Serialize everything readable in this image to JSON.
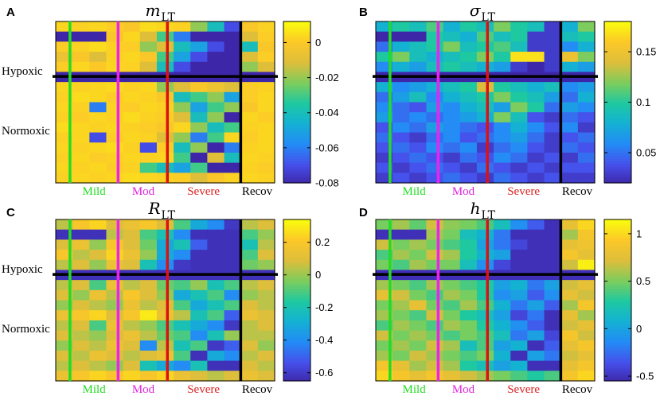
{
  "figure": {
    "row_labels": [
      "Hypoxic",
      "Normoxic"
    ],
    "condition_labels": [
      {
        "text": "Mild",
        "color": "#22dd22"
      },
      {
        "text": "Mod",
        "color": "#dd22dd"
      },
      {
        "text": "Severe",
        "color": "#dd2222"
      },
      {
        "text": "Recov",
        "color": "#000000"
      }
    ],
    "divider_colors": [
      "#22dd22",
      "#ee22ee",
      "#dd1111",
      "#000000"
    ]
  },
  "chart_data": [
    {
      "type": "heatmap",
      "panel": "A",
      "title_symbol": "m",
      "title_subscript": "LT",
      "rows": 16,
      "cols": 13,
      "hypoxic_rows": 5,
      "clim": [
        -0.08,
        0.012
      ],
      "colorbar_ticks": [
        {
          "value": 0,
          "label": "0"
        },
        {
          "value": -0.02,
          "label": "-0.02"
        },
        {
          "value": -0.04,
          "label": "-0.04"
        },
        {
          "value": -0.06,
          "label": "-0.06"
        },
        {
          "value": -0.08,
          "label": "-0.08"
        }
      ],
      "values": [
        [
          0.004,
          0.003,
          0.004,
          0.002,
          0.0,
          0.005,
          0.004,
          0.003,
          -0.02,
          -0.04,
          -0.07,
          0.0,
          0.003
        ],
        [
          -0.08,
          -0.08,
          -0.08,
          0.0,
          0.004,
          -0.01,
          -0.03,
          -0.06,
          -0.08,
          -0.08,
          -0.08,
          -0.01,
          0.002
        ],
        [
          0.002,
          0.003,
          0.005,
          0.003,
          0.002,
          -0.02,
          -0.01,
          -0.04,
          -0.05,
          -0.07,
          -0.08,
          -0.04,
          0.0
        ],
        [
          -0.005,
          0.0,
          -0.01,
          0.003,
          0.004,
          0.0,
          -0.03,
          -0.05,
          -0.07,
          -0.08,
          -0.08,
          -0.01,
          0.002
        ],
        [
          0.002,
          0.004,
          0.001,
          0.004,
          0.003,
          -0.01,
          -0.04,
          -0.07,
          -0.08,
          -0.08,
          -0.08,
          -0.02,
          -0.01
        ],
        [
          -0.08,
          -0.08,
          -0.08,
          -0.08,
          -0.08,
          -0.08,
          -0.08,
          -0.08,
          -0.08,
          -0.08,
          -0.08,
          -0.08,
          -0.08
        ],
        [
          0.004,
          0.003,
          0.004,
          0.005,
          0.003,
          0.004,
          -0.02,
          -0.01,
          0.0,
          -0.005,
          -0.01,
          0.002,
          0.003
        ],
        [
          0.003,
          0.005,
          0.004,
          0.002,
          0.004,
          0.003,
          0.0,
          -0.04,
          -0.03,
          -0.02,
          -0.05,
          0.002,
          0.004
        ],
        [
          0.004,
          0.003,
          -0.06,
          0.003,
          0.002,
          0.004,
          0.003,
          -0.02,
          -0.05,
          -0.03,
          -0.02,
          0.0,
          0.004
        ],
        [
          0.003,
          0.002,
          0.004,
          0.003,
          0.005,
          0.003,
          0.002,
          -0.01,
          -0.04,
          -0.02,
          -0.08,
          0.004,
          0.002
        ],
        [
          0.005,
          0.004,
          0.003,
          0.004,
          0.003,
          0.002,
          0.0,
          0.004,
          -0.02,
          -0.04,
          -0.03,
          0.003,
          0.004
        ],
        [
          0.003,
          0.004,
          -0.07,
          0.002,
          0.004,
          0.003,
          -0.01,
          -0.02,
          -0.06,
          -0.03,
          0.004,
          0.002,
          0.004
        ],
        [
          0.004,
          0.003,
          0.004,
          0.005,
          0.003,
          -0.07,
          0.002,
          -0.04,
          -0.02,
          -0.08,
          -0.06,
          0.003,
          0.004
        ],
        [
          0.003,
          0.004,
          0.002,
          0.003,
          0.004,
          0.003,
          0.004,
          -0.03,
          -0.08,
          -0.01,
          -0.04,
          0.004,
          0.003
        ],
        [
          0.004,
          0.003,
          0.004,
          0.002,
          0.003,
          -0.03,
          -0.04,
          -0.05,
          -0.03,
          -0.08,
          -0.08,
          0.003,
          0.002
        ],
        [
          0.003,
          0.004,
          0.003,
          0.004,
          0.005,
          0.004,
          0.003,
          0.002,
          -0.01,
          0.0,
          0.003,
          0.004,
          0.003
        ]
      ]
    },
    {
      "type": "heatmap",
      "panel": "B",
      "title_symbol": "σ",
      "title_subscript": "LT",
      "rows": 16,
      "cols": 13,
      "hypoxic_rows": 5,
      "clim": [
        0.02,
        0.18
      ],
      "colorbar_ticks": [
        {
          "value": 0.15,
          "label": "0.15"
        },
        {
          "value": 0.1,
          "label": "0.1"
        },
        {
          "value": 0.05,
          "label": "0.05"
        }
      ],
      "values": [
        [
          0.08,
          0.1,
          0.09,
          0.11,
          0.08,
          0.1,
          0.09,
          0.12,
          0.1,
          0.09,
          0.03,
          0.08,
          0.12
        ],
        [
          0.02,
          0.02,
          0.02,
          0.1,
          0.09,
          0.08,
          0.11,
          0.09,
          0.1,
          0.03,
          0.03,
          0.09,
          0.1
        ],
        [
          0.05,
          0.08,
          0.09,
          0.1,
          0.12,
          0.09,
          0.1,
          0.11,
          0.09,
          0.03,
          0.03,
          0.06,
          0.08
        ],
        [
          0.1,
          0.12,
          0.09,
          0.08,
          0.09,
          0.1,
          0.12,
          0.1,
          0.17,
          0.17,
          0.03,
          0.15,
          0.12
        ],
        [
          0.06,
          0.08,
          0.07,
          0.09,
          0.1,
          0.09,
          0.08,
          0.07,
          0.03,
          0.02,
          0.03,
          0.08,
          0.07
        ],
        [
          0.02,
          0.02,
          0.02,
          0.02,
          0.02,
          0.02,
          0.02,
          0.02,
          0.02,
          0.02,
          0.02,
          0.02,
          0.02
        ],
        [
          0.08,
          0.06,
          0.07,
          0.08,
          0.09,
          0.1,
          0.14,
          0.1,
          0.09,
          0.08,
          0.09,
          0.06,
          0.07
        ],
        [
          0.05,
          0.07,
          0.09,
          0.06,
          0.08,
          0.09,
          0.1,
          0.12,
          0.1,
          0.09,
          0.07,
          0.05,
          0.08
        ],
        [
          0.06,
          0.05,
          0.04,
          0.07,
          0.06,
          0.08,
          0.09,
          0.07,
          0.12,
          0.1,
          0.05,
          0.07,
          0.06
        ],
        [
          0.07,
          0.05,
          0.06,
          0.05,
          0.06,
          0.07,
          0.08,
          0.12,
          0.09,
          0.04,
          0.03,
          0.05,
          0.04
        ],
        [
          0.04,
          0.06,
          0.05,
          0.07,
          0.06,
          0.05,
          0.04,
          0.06,
          0.08,
          0.06,
          0.04,
          0.06,
          0.03
        ],
        [
          0.05,
          0.04,
          0.03,
          0.05,
          0.06,
          0.04,
          0.05,
          0.06,
          0.07,
          0.05,
          0.03,
          0.04,
          0.05
        ],
        [
          0.04,
          0.05,
          0.04,
          0.06,
          0.05,
          0.06,
          0.03,
          0.05,
          0.06,
          0.04,
          0.03,
          0.05,
          0.04
        ],
        [
          0.03,
          0.04,
          0.05,
          0.04,
          0.03,
          0.05,
          0.04,
          0.06,
          0.05,
          0.03,
          0.04,
          0.03,
          0.05
        ],
        [
          0.04,
          0.03,
          0.04,
          0.05,
          0.04,
          0.03,
          0.05,
          0.04,
          0.03,
          0.04,
          0.03,
          0.04,
          0.04
        ],
        [
          0.03,
          0.04,
          0.03,
          0.04,
          0.05,
          0.04,
          0.03,
          0.05,
          0.04,
          0.03,
          0.04,
          0.03,
          0.03
        ]
      ]
    },
    {
      "type": "heatmap",
      "panel": "C",
      "title_symbol": "R",
      "title_subscript": "LT",
      "rows": 16,
      "cols": 13,
      "hypoxic_rows": 5,
      "clim": [
        -0.65,
        0.34
      ],
      "colorbar_ticks": [
        {
          "value": 0.2,
          "label": "0.2"
        },
        {
          "value": 0,
          "label": "0"
        },
        {
          "value": -0.2,
          "label": "-0.2"
        },
        {
          "value": -0.4,
          "label": "-0.4"
        },
        {
          "value": -0.6,
          "label": "-0.6"
        }
      ],
      "values": [
        [
          0.05,
          0.2,
          0.25,
          0.1,
          0.15,
          0.2,
          0.1,
          -0.1,
          -0.3,
          -0.4,
          -0.6,
          0.05,
          0.1
        ],
        [
          -0.62,
          -0.62,
          -0.62,
          0.05,
          0.1,
          -0.1,
          -0.2,
          -0.4,
          -0.62,
          -0.62,
          -0.62,
          -0.1,
          0.0
        ],
        [
          0.1,
          0.15,
          0.0,
          0.2,
          0.1,
          -0.05,
          -0.3,
          -0.2,
          -0.5,
          -0.62,
          -0.62,
          -0.2,
          0.05
        ],
        [
          0.2,
          0.05,
          0.1,
          0.25,
          0.15,
          0.0,
          -0.3,
          -0.4,
          -0.62,
          -0.62,
          -0.62,
          -0.1,
          0.1
        ],
        [
          0.05,
          0.1,
          0.0,
          0.15,
          0.1,
          -0.2,
          -0.4,
          -0.6,
          -0.62,
          -0.62,
          -0.62,
          -0.05,
          0.0
        ],
        [
          -0.62,
          -0.62,
          -0.62,
          -0.62,
          -0.62,
          -0.62,
          -0.62,
          -0.62,
          -0.62,
          -0.62,
          -0.62,
          -0.62,
          -0.62
        ],
        [
          0.05,
          0.1,
          -0.1,
          0.15,
          0.05,
          0.1,
          -0.05,
          -0.1,
          0.0,
          -0.2,
          -0.1,
          0.05,
          0.1
        ],
        [
          0.1,
          0.0,
          0.15,
          0.05,
          0.2,
          0.1,
          0.0,
          -0.3,
          -0.2,
          -0.1,
          -0.4,
          0.0,
          0.05
        ],
        [
          0.0,
          0.1,
          0.05,
          0.0,
          0.15,
          0.05,
          0.1,
          -0.1,
          -0.3,
          -0.2,
          -0.1,
          0.1,
          0.05
        ],
        [
          0.15,
          0.2,
          0.25,
          0.1,
          0.2,
          0.3,
          0.15,
          0.05,
          -0.2,
          -0.1,
          -0.5,
          0.15,
          0.1
        ],
        [
          0.05,
          0.1,
          -0.1,
          0.15,
          0.05,
          0.0,
          -0.1,
          -0.2,
          -0.3,
          -0.4,
          -0.6,
          0.05,
          0.1
        ],
        [
          0.1,
          0.05,
          0.0,
          0.1,
          0.15,
          0.05,
          -0.05,
          -0.1,
          -0.4,
          -0.2,
          0.0,
          0.05,
          0.05
        ],
        [
          0.0,
          0.1,
          0.05,
          0.15,
          0.1,
          -0.4,
          0.05,
          -0.2,
          -0.1,
          -0.6,
          -0.5,
          0.1,
          0.0
        ],
        [
          0.1,
          0.05,
          0.15,
          0.1,
          0.05,
          0.1,
          0.15,
          -0.1,
          -0.62,
          -0.3,
          -0.4,
          0.05,
          0.1
        ],
        [
          0.05,
          0.1,
          0.05,
          0.0,
          0.1,
          -0.2,
          -0.3,
          -0.4,
          -0.2,
          -0.62,
          -0.62,
          0.1,
          0.05
        ],
        [
          0.15,
          0.2,
          0.25,
          0.2,
          0.25,
          0.2,
          0.25,
          0.15,
          0.1,
          0.05,
          0.1,
          0.15,
          0.1
        ]
      ]
    },
    {
      "type": "heatmap",
      "panel": "D",
      "title_symbol": "h",
      "title_subscript": "LT",
      "rows": 16,
      "cols": 13,
      "hypoxic_rows": 5,
      "clim": [
        -0.55,
        1.15
      ],
      "colorbar_ticks": [
        {
          "value": 1,
          "label": "1"
        },
        {
          "value": 0.5,
          "label": "0.5"
        },
        {
          "value": 0,
          "label": "0"
        },
        {
          "value": -0.5,
          "label": "-0.5"
        }
      ],
      "values": [
        [
          0.5,
          0.6,
          0.45,
          0.7,
          0.55,
          0.5,
          0.4,
          0.2,
          -0.1,
          -0.3,
          -0.5,
          0.8,
          1.0
        ],
        [
          -0.5,
          -0.5,
          -0.5,
          0.6,
          0.5,
          0.2,
          0.1,
          -0.2,
          -0.5,
          -0.5,
          -0.5,
          0.6,
          0.9
        ],
        [
          0.7,
          0.5,
          0.6,
          0.5,
          0.4,
          0.3,
          0.0,
          -0.2,
          -0.4,
          -0.5,
          -0.5,
          0.8,
          0.85
        ],
        [
          0.4,
          0.6,
          0.5,
          0.7,
          0.6,
          0.3,
          0.1,
          0.0,
          -0.5,
          -0.5,
          -0.5,
          0.9,
          0.8
        ],
        [
          0.5,
          0.4,
          0.6,
          0.5,
          0.5,
          0.2,
          -0.1,
          -0.4,
          -0.5,
          -0.5,
          -0.5,
          0.7,
          1.1
        ],
        [
          -0.5,
          -0.5,
          -0.5,
          -0.5,
          -0.5,
          -0.5,
          -0.5,
          -0.5,
          -0.5,
          -0.5,
          -0.5,
          -0.5,
          -0.5
        ],
        [
          0.6,
          0.5,
          0.4,
          0.6,
          0.5,
          0.4,
          0.3,
          0.0,
          0.1,
          -0.2,
          0.0,
          0.7,
          0.8
        ],
        [
          0.8,
          0.7,
          0.5,
          0.4,
          0.6,
          0.5,
          0.3,
          -0.1,
          0.0,
          -0.3,
          -0.1,
          0.8,
          0.7
        ],
        [
          0.5,
          0.6,
          0.8,
          0.5,
          0.4,
          0.6,
          0.4,
          0.1,
          -0.2,
          0.0,
          -0.3,
          0.6,
          0.9
        ],
        [
          0.6,
          0.5,
          0.4,
          0.7,
          0.5,
          0.3,
          0.2,
          0.0,
          -0.4,
          -0.2,
          -0.5,
          0.8,
          0.6
        ],
        [
          0.4,
          0.6,
          0.5,
          0.4,
          0.6,
          0.5,
          0.3,
          0.1,
          -0.1,
          -0.3,
          -0.5,
          0.7,
          0.8
        ],
        [
          0.7,
          0.5,
          0.6,
          0.5,
          0.4,
          0.5,
          0.4,
          0.2,
          -0.2,
          0.0,
          -0.4,
          0.9,
          0.7
        ],
        [
          0.5,
          0.6,
          0.5,
          0.7,
          0.6,
          0.2,
          0.4,
          0.0,
          0.1,
          -0.5,
          -0.3,
          0.8,
          0.9
        ],
        [
          0.6,
          0.5,
          0.7,
          0.6,
          0.5,
          0.4,
          0.5,
          0.1,
          -0.5,
          0.0,
          -0.2,
          0.7,
          0.8
        ],
        [
          0.9,
          0.8,
          0.6,
          0.7,
          0.6,
          0.3,
          0.2,
          0.0,
          0.1,
          -0.5,
          -0.5,
          0.8,
          0.9
        ],
        [
          1.0,
          0.9,
          0.8,
          0.9,
          0.8,
          0.7,
          0.6,
          0.5,
          0.4,
          0.3,
          0.4,
          0.9,
          1.0
        ]
      ]
    }
  ]
}
